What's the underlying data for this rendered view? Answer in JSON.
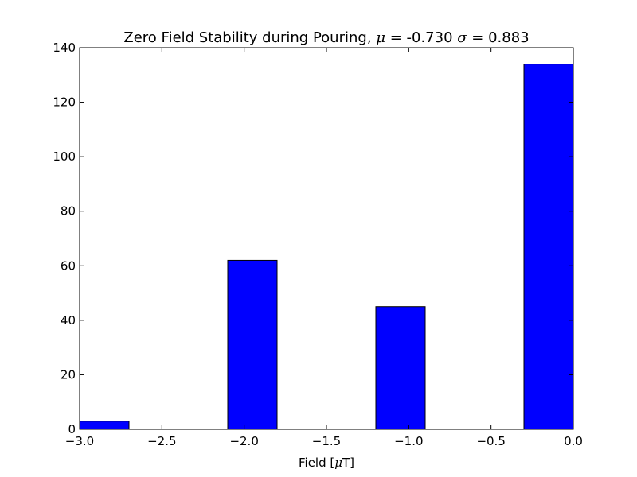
{
  "chart_data": {
    "type": "bar",
    "title_prefix": "Zero Field Stability during Pouring, ",
    "title_mu_symbol": "μ",
    "title_mu_text": " = -0.730 ",
    "title_sigma_symbol": "σ",
    "title_sigma_text": " = 0.883",
    "xlabel_prefix": "Field [",
    "xlabel_mu_symbol": "μ",
    "xlabel_suffix": "T]",
    "xlim": [
      -3.0,
      0.0
    ],
    "ylim": [
      0,
      140
    ],
    "xticks": [
      -3.0,
      -2.5,
      -2.0,
      -1.5,
      -1.0,
      -0.5,
      0.0
    ],
    "xtick_labels": [
      "−3.0",
      "−2.5",
      "−2.0",
      "−1.5",
      "−1.0",
      "−0.5",
      "0.0"
    ],
    "yticks": [
      0,
      20,
      40,
      60,
      80,
      100,
      120,
      140
    ],
    "ytick_labels": [
      "0",
      "20",
      "40",
      "60",
      "80",
      "100",
      "120",
      "140"
    ],
    "bins": [
      {
        "x0": -3.0,
        "x1": -2.7,
        "value": 3
      },
      {
        "x0": -2.1,
        "x1": -1.8,
        "value": 62
      },
      {
        "x0": -1.2,
        "x1": -0.9,
        "value": 45
      },
      {
        "x0": -0.3,
        "x1": 0.0,
        "value": 134
      }
    ],
    "bar_color": "#0000ff",
    "edge_color": "#000000",
    "grid": false
  }
}
